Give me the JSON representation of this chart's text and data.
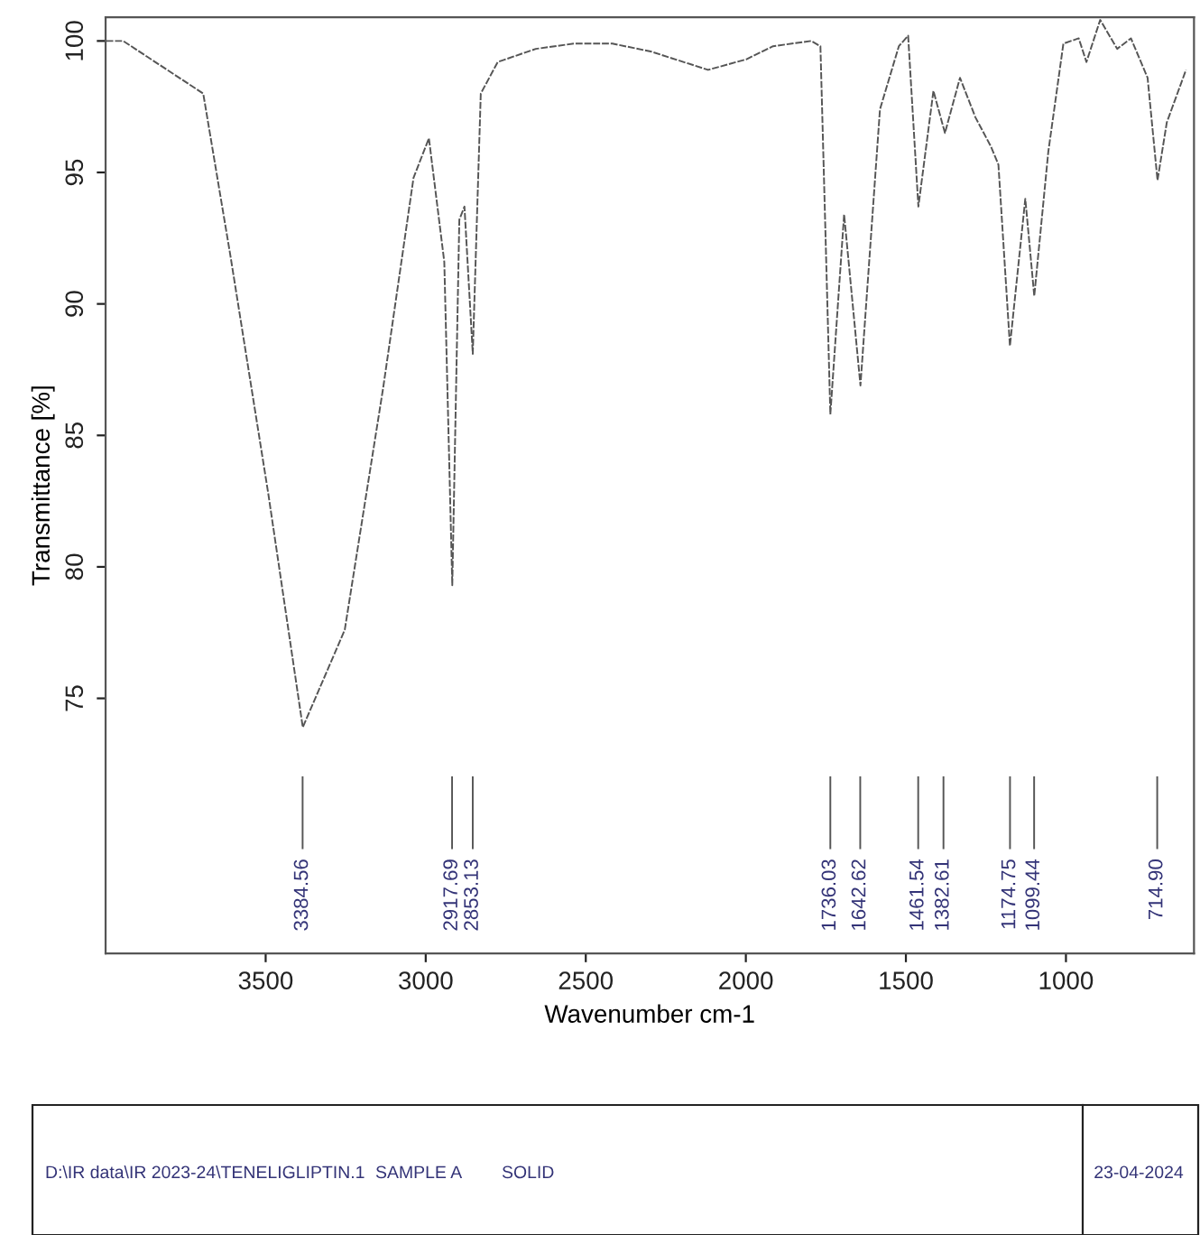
{
  "chart_data": {
    "type": "line",
    "xlabel": "Wavenumber cm-1",
    "ylabel": "Transmittance [%]",
    "xlim": [
      4000,
      600
    ],
    "ylim": [
      65.3,
      100.9
    ],
    "xticks": [
      3500,
      3000,
      2500,
      2000,
      1500,
      1000
    ],
    "yticks": [
      75,
      80,
      85,
      90,
      95,
      100
    ],
    "grid": false,
    "line_style": "dashed",
    "marker": "none",
    "series": [
      {
        "color": "#555555",
        "x": [
          3998,
          3945,
          3695,
          3611,
          3492,
          3384,
          3253,
          3133,
          3038,
          2990,
          2942,
          2917,
          2895,
          2879,
          2853,
          2828,
          2775,
          2656,
          2537,
          2417,
          2297,
          2118,
          1999,
          1915,
          1796,
          1767,
          1736,
          1693,
          1642,
          1581,
          1522,
          1493,
          1461,
          1414,
          1378,
          1331,
          1283,
          1235,
          1211,
          1175,
          1127,
          1099,
          1055,
          1008,
          960,
          936,
          893,
          840,
          797,
          745,
          714,
          685,
          625
        ],
        "values": [
          100.0,
          100.0,
          98.0,
          91.9,
          82.8,
          73.9,
          77.6,
          86.8,
          94.8,
          96.3,
          91.6,
          79.3,
          93.2,
          93.7,
          88.1,
          98.0,
          99.2,
          99.7,
          99.9,
          99.9,
          99.6,
          98.9,
          99.3,
          99.8,
          100.0,
          99.8,
          85.8,
          93.4,
          86.9,
          97.4,
          99.8,
          100.2,
          93.7,
          98.1,
          96.5,
          98.6,
          97.1,
          96.0,
          95.3,
          88.4,
          94.0,
          90.3,
          95.8,
          99.9,
          100.1,
          99.2,
          100.8,
          99.7,
          100.1,
          98.6,
          94.7,
          96.9,
          98.9
        ]
      }
    ],
    "annotations": [
      {
        "text": "3384.56",
        "x": 3384.56
      },
      {
        "text": "2917.69",
        "x": 2917.69
      },
      {
        "text": "2853.13",
        "x": 2853.13
      },
      {
        "text": "1736.03",
        "x": 1736.03
      },
      {
        "text": "1642.62",
        "x": 1642.62
      },
      {
        "text": "1461.54",
        "x": 1461.54
      },
      {
        "text": "1382.61",
        "x": 1382.61
      },
      {
        "text": "1174.75",
        "x": 1174.75
      },
      {
        "text": "1099.44",
        "x": 1099.44
      },
      {
        "text": "714.90",
        "x": 714.9
      },
      "D:\\IR data\\IR 2023-24\\TENELIGLIPTIN.1",
      "SAMPLE A",
      "SOLID",
      "23-04-2024"
    ]
  }
}
